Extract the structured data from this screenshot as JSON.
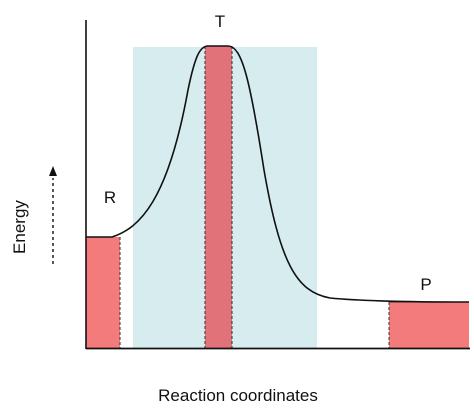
{
  "diagram": {
    "labels": {
      "reactant": "R",
      "transition": "T",
      "product": "P"
    },
    "axes": {
      "y_label": "Energy",
      "x_label": "Reaction coordinates"
    },
    "colors": {
      "region": "#d6ecee",
      "bar_fill": "#f37b7b",
      "bar_fill_dark": "#e2727a",
      "curve": "#111111",
      "axis": "#111111"
    }
  }
}
